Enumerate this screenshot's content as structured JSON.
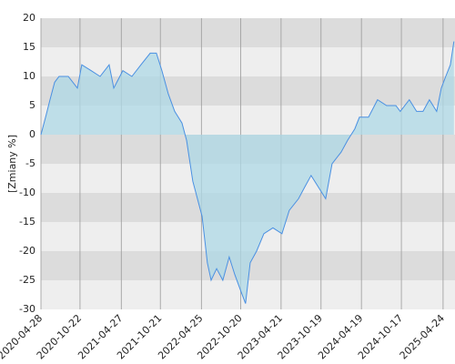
{
  "chart_data": {
    "type": "area",
    "y_label": "[Zmiany %]",
    "x": [
      "2020-04-28",
      "2020-05-19",
      "2020-06-08",
      "2020-06-29",
      "2020-07-19",
      "2020-08-30",
      "2020-10-10",
      "2020-10-30",
      "2020-12-11",
      "2021-01-21",
      "2021-03-03",
      "2021-03-24",
      "2021-05-04",
      "2021-06-14",
      "2021-07-25",
      "2021-09-05",
      "2021-10-03",
      "2021-10-28",
      "2021-11-26",
      "2021-12-25",
      "2022-01-27",
      "2022-02-17",
      "2022-03-17",
      "2022-04-07",
      "2022-04-28",
      "2022-05-22",
      "2022-06-08",
      "2022-07-03",
      "2022-07-31",
      "2022-08-29",
      "2022-09-23",
      "2022-10-22",
      "2022-11-11",
      "2022-12-02",
      "2022-12-31",
      "2023-02-02",
      "2023-03-15",
      "2023-04-25",
      "2023-05-28",
      "2023-07-09",
      "2023-08-06",
      "2023-09-04",
      "2023-10-07",
      "2023-11-09",
      "2023-12-08",
      "2024-01-18",
      "2024-02-16",
      "2024-03-20",
      "2024-04-10",
      "2024-05-21",
      "2024-07-01",
      "2024-08-11",
      "2024-09-22",
      "2024-10-12",
      "2024-11-22",
      "2024-12-25",
      "2025-01-23",
      "2025-02-21",
      "2025-03-26",
      "2025-04-16",
      "2025-05-06",
      "2025-05-27",
      "2025-06-12"
    ],
    "series": [
      {
        "color": "#4a90e2",
        "fill": "#add8e6",
        "values": [
          0,
          3,
          6,
          9,
          10,
          10,
          8,
          12,
          11,
          10,
          12,
          8,
          11,
          10,
          12,
          14,
          14,
          11,
          7,
          4,
          2,
          -1,
          -8,
          -11,
          -14,
          -22,
          -25,
          -23,
          -25,
          -21,
          -24,
          -27,
          -29,
          -22,
          -20,
          -17,
          -16,
          -17,
          -13,
          -11,
          -9,
          -7,
          -9,
          -11,
          -5,
          -3,
          -1,
          1,
          3,
          3,
          6,
          5,
          5,
          4,
          6,
          4,
          4,
          6,
          4,
          8,
          10,
          12,
          16
        ]
      }
    ],
    "xlim": [
      "2020-04-28",
      "2025-06-17"
    ],
    "xticks": [
      "2020-04-28",
      "2020-10-22",
      "2021-04-27",
      "2021-10-21",
      "2022-04-25",
      "2022-10-20",
      "2023-04-21",
      "2023-10-19",
      "2024-04-19",
      "2024-10-17",
      "2025-04-24"
    ],
    "ylim": [
      -30,
      20
    ],
    "yticks": [
      -30,
      -25,
      -20,
      -15,
      -10,
      -5,
      0,
      5,
      10,
      15,
      20
    ],
    "grid": true
  }
}
